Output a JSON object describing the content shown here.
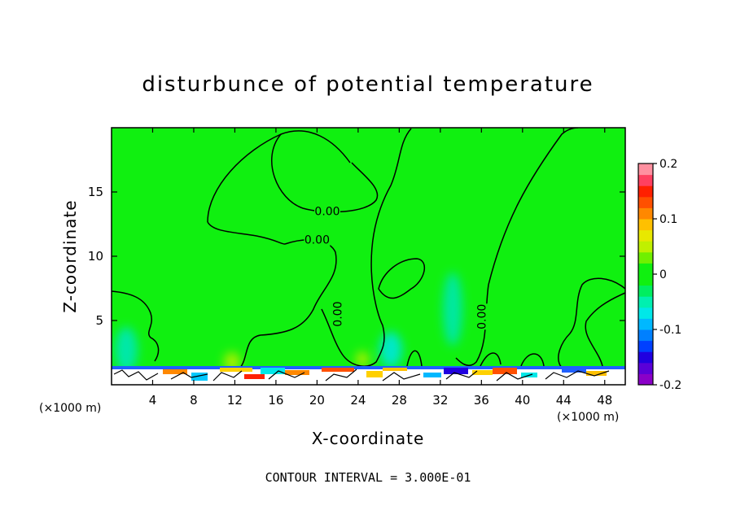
{
  "chart_data": {
    "type": "heatmap",
    "title": "disturbunce of potential temperature",
    "xlabel": "X-coordinate",
    "ylabel": "Z-coordinate",
    "x_unit": "(×1000 m)",
    "y_unit": "(×1000 m)",
    "xlim": [
      0,
      50
    ],
    "ylim": [
      0,
      20
    ],
    "x_ticks": [
      4,
      8,
      12,
      16,
      20,
      24,
      28,
      32,
      36,
      40,
      44,
      48
    ],
    "y_ticks": [
      5,
      10,
      15
    ],
    "colorbar": {
      "range": [
        -0.2,
        0.2
      ],
      "ticks": [
        {
          "value": 0.2,
          "label": "0.2"
        },
        {
          "value": 0.1,
          "label": "0.1"
        },
        {
          "value": 0,
          "label": "0"
        },
        {
          "value": -0.1,
          "label": "-0.1"
        },
        {
          "value": -0.2,
          "label": "-0.2"
        }
      ],
      "colors": [
        "#8a00c8",
        "#5a00d8",
        "#2000e0",
        "#0040ff",
        "#0080ff",
        "#00b8ff",
        "#00e8e8",
        "#00f0b0",
        "#00ee60",
        "#10f010",
        "#10f010",
        "#70f000",
        "#c0f000",
        "#e8e800",
        "#ffc000",
        "#ff8800",
        "#ff5000",
        "#ff2000",
        "#ff4060",
        "#ff90a0"
      ]
    },
    "contour_labels": [
      {
        "text": "0.00",
        "x": 21.0,
        "z": 13.5
      },
      {
        "text": "0.00",
        "x": 20.0,
        "z": 11.3
      },
      {
        "text": "0.00",
        "x": 22.0,
        "z": 5.5
      },
      {
        "text": "0.00",
        "x": 36.0,
        "z": 5.3
      }
    ],
    "footer": "CONTOUR INTERVAL = 3.000E-01"
  }
}
